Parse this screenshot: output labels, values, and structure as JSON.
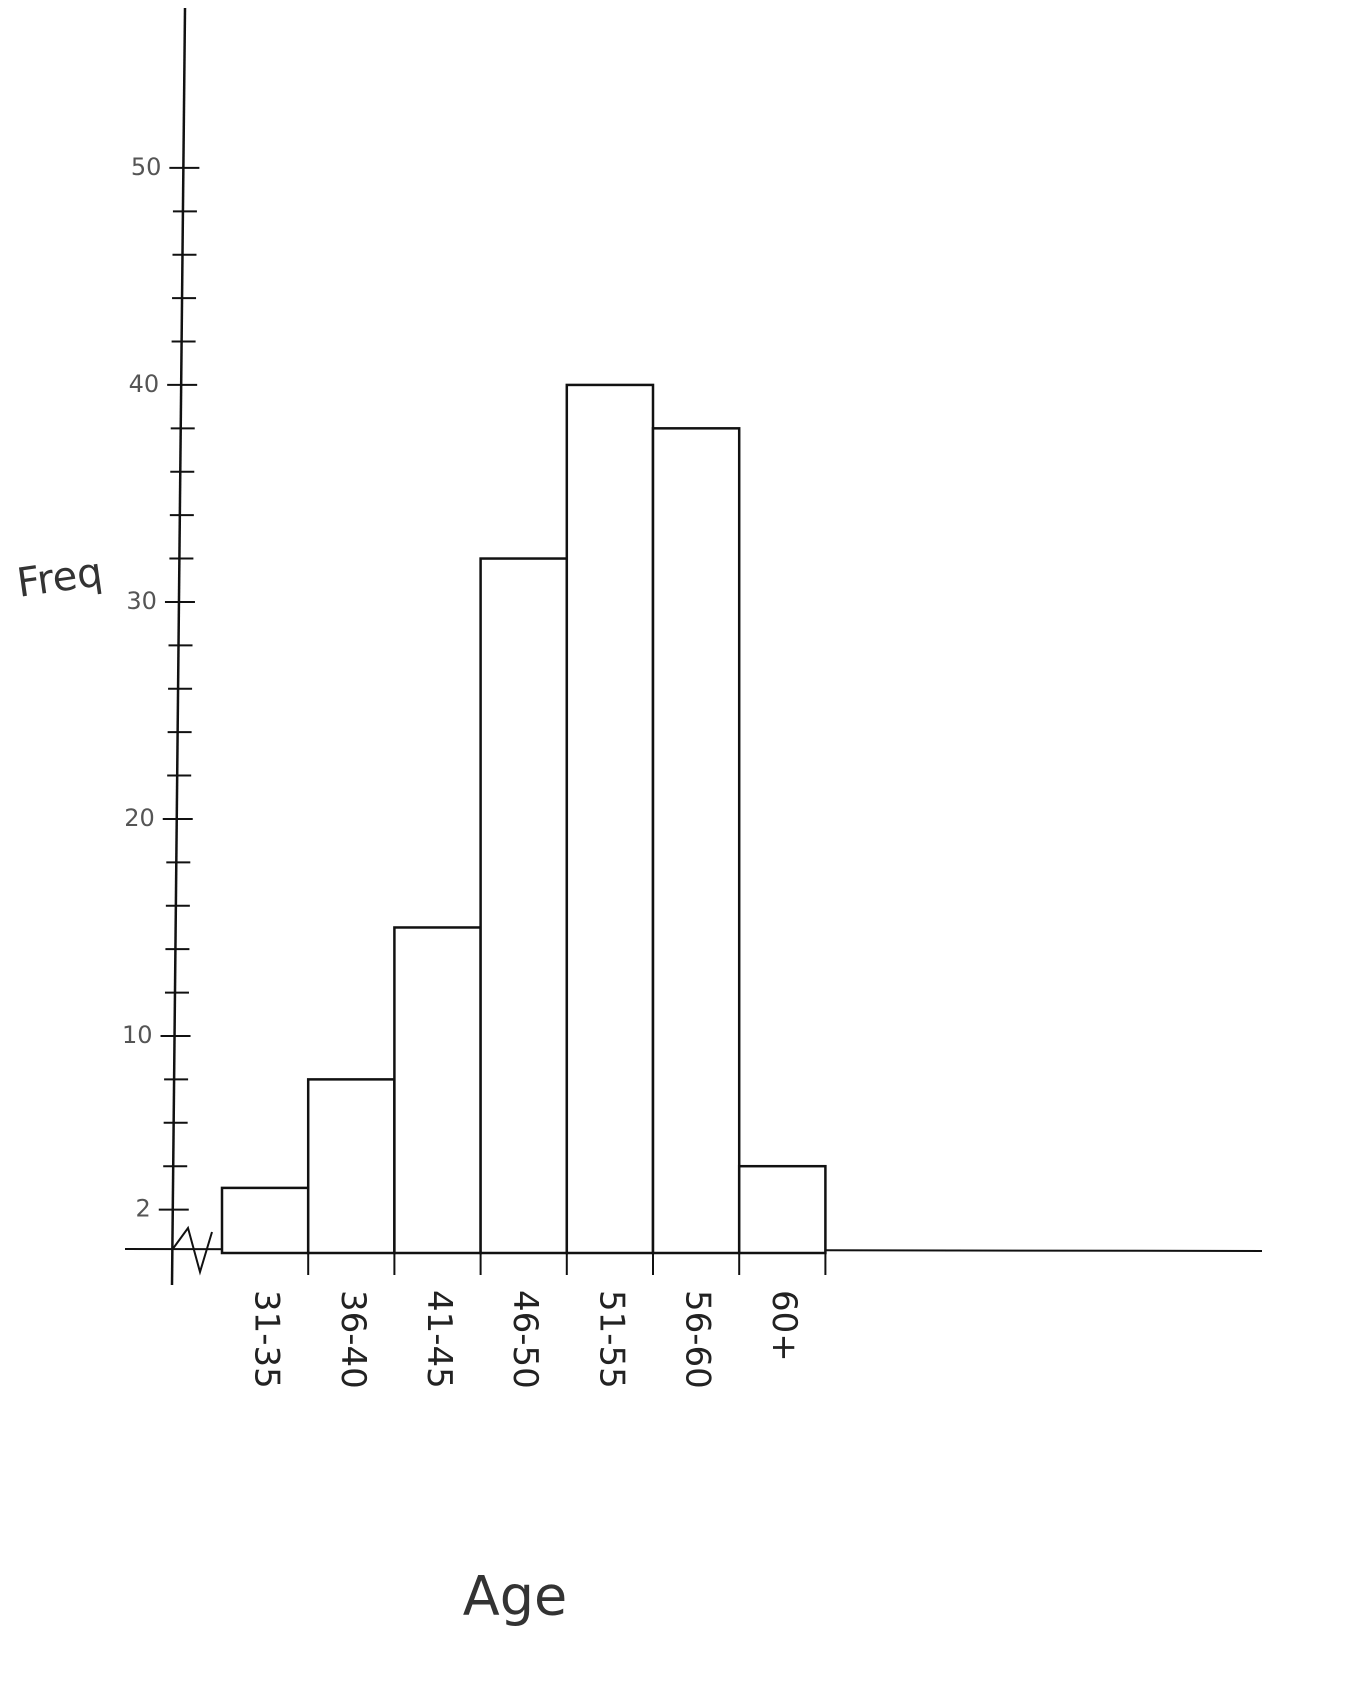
{
  "chart_data": {
    "type": "bar",
    "y_label": "Freq",
    "x_label": "Age",
    "categories": [
      "31-35",
      "36-40",
      "41-45",
      "46-50",
      "51-55",
      "56-60",
      "60+"
    ],
    "values": [
      3,
      8,
      15,
      32,
      40,
      38,
      4
    ],
    "color": "#ffffff",
    "ylim": [
      0,
      57
    ],
    "yticks": [
      2,
      10,
      20,
      30,
      40,
      50
    ],
    "minor_yticks": [
      4,
      6,
      8,
      12,
      14,
      16,
      18,
      22,
      24,
      26,
      28,
      32,
      34,
      36,
      38,
      42,
      44,
      46,
      48
    ],
    "grid": false
  }
}
